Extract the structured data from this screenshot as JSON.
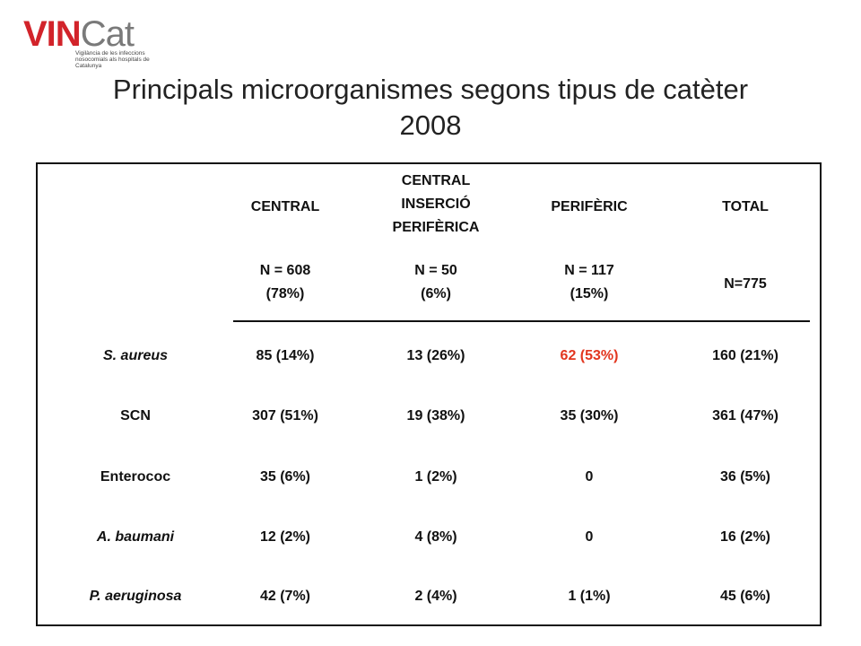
{
  "logo": {
    "brand_a": "VIN",
    "brand_b": "Cat",
    "subtitle": "Vigilància de les infeccions nosocomials als hospitals de Catalunya"
  },
  "title": {
    "line1": "Principals microorganismes segons tipus de catèter",
    "line2": "2008"
  },
  "table": {
    "headers": [
      {
        "lines": [
          "CENTRAL"
        ]
      },
      {
        "lines": [
          "CENTRAL",
          "INSERCIÓ",
          "PERIFÈRICA"
        ]
      },
      {
        "lines": [
          "PERIFÈRIC"
        ]
      },
      {
        "lines": [
          "TOTAL"
        ]
      }
    ],
    "counts": [
      {
        "lines": [
          "N = 608",
          "(78%)"
        ]
      },
      {
        "lines": [
          "N = 50",
          "(6%)"
        ]
      },
      {
        "lines": [
          "N = 117",
          "(15%)"
        ]
      },
      {
        "lines": [
          "N=775"
        ]
      }
    ],
    "rows": [
      {
        "label": "S. aureus",
        "italic": true,
        "cells": [
          "85 (14%)",
          "13 (26%)",
          "62 (53%)",
          "160 (21%)"
        ],
        "highlight_index": 2
      },
      {
        "label": "SCN",
        "italic": false,
        "cells": [
          "307 (51%)",
          "19 (38%)",
          "35 (30%)",
          "361 (47%)"
        ]
      },
      {
        "label": "Enterococ",
        "italic": false,
        "cells": [
          "35 (6%)",
          "1 (2%)",
          "0",
          "36 (5%)"
        ]
      },
      {
        "label": "A. baumani",
        "italic": true,
        "cells": [
          "12 (2%)",
          "4 (8%)",
          "0",
          "16 (2%)"
        ]
      },
      {
        "label": "P. aeruginosa",
        "italic": true,
        "cells": [
          "42 (7%)",
          "2 (4%)",
          "1 (1%)",
          "45 (6%)"
        ]
      }
    ],
    "highlight_color": "#e2361f"
  }
}
